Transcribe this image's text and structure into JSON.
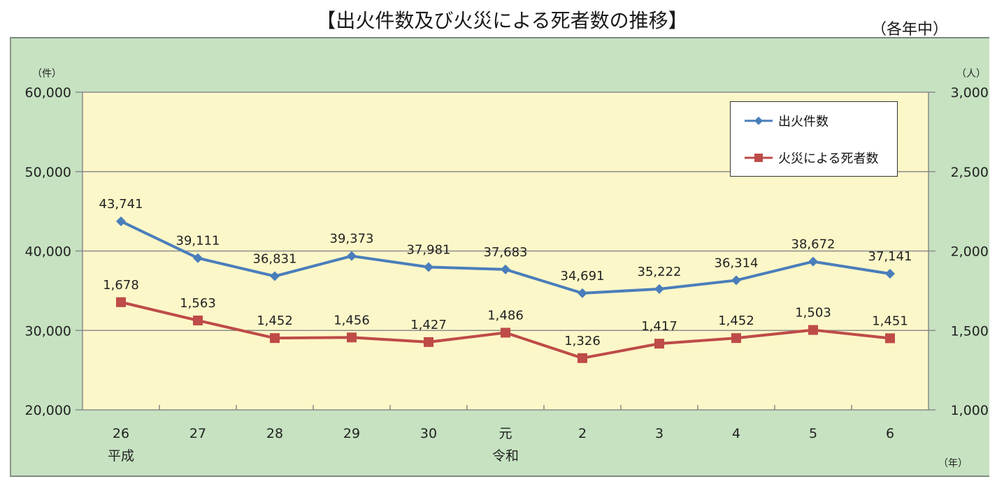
{
  "title": "【出火件数及び火災による死者数の推移】",
  "subtitle": "（各年中）",
  "axes": {
    "left_unit": "（件）",
    "right_unit": "（人）",
    "x_unit": "（年）",
    "left_ticks": [
      "60,000",
      "50,000",
      "40,000",
      "30,000",
      "20,000"
    ],
    "right_ticks": [
      "3,000",
      "2,500",
      "2,000",
      "1,500",
      "1,000"
    ],
    "era_labels": [
      {
        "index": 0,
        "label": "平成"
      },
      {
        "index": 5,
        "label": "令和"
      }
    ]
  },
  "legend": {
    "series0": "出火件数",
    "series1": "火災による死者数"
  },
  "colors": {
    "panel_bg": "#c6e2c1",
    "plot_bg": "#fcf7c8",
    "fires": "#4a7ebb",
    "deaths": "#be4b48",
    "grid": "#8c8c8c"
  },
  "chart_data": {
    "type": "line",
    "title": "【出火件数及び火災による死者数の推移】",
    "subtitle": "（各年中）",
    "categories": [
      "26",
      "27",
      "28",
      "29",
      "30",
      "元",
      "2",
      "3",
      "4",
      "5",
      "6"
    ],
    "category_eras": [
      "平成",
      "",
      "",
      "",
      "",
      "令和",
      "",
      "",
      "",
      "",
      ""
    ],
    "xlabel": "（年）",
    "series": [
      {
        "name": "出火件数",
        "axis": "left",
        "unit": "件",
        "marker": "diamond",
        "color": "#4a7ebb",
        "values": [
          43741,
          39111,
          36831,
          39373,
          37981,
          37683,
          34691,
          35222,
          36314,
          38672,
          37141
        ],
        "labels": [
          "43,741",
          "39,111",
          "36,831",
          "39,373",
          "37,981",
          "37,683",
          "34,691",
          "35,222",
          "36,314",
          "38,672",
          "37,141"
        ]
      },
      {
        "name": "火災による死者数",
        "axis": "right",
        "unit": "人",
        "marker": "square",
        "color": "#be4b48",
        "values": [
          1678,
          1563,
          1452,
          1456,
          1427,
          1486,
          1326,
          1417,
          1452,
          1503,
          1451
        ],
        "labels": [
          "1,678",
          "1,563",
          "1,452",
          "1,456",
          "1,427",
          "1,486",
          "1,326",
          "1,417",
          "1,452",
          "1,503",
          "1,451"
        ]
      }
    ],
    "ylim_left": [
      20000,
      60000
    ],
    "ylim_right": [
      1000,
      3000
    ],
    "ylabel_left": "（件）",
    "ylabel_right": "（人）",
    "grid": true,
    "legend_position": "top-right inside plot"
  }
}
